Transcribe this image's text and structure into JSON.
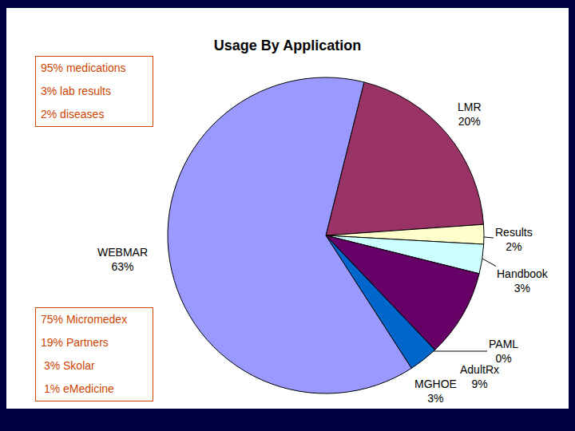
{
  "chart_data": {
    "type": "pie",
    "title": "Usage By Application",
    "categories": [
      "LMR",
      "Results",
      "Handbook",
      "AdultRx",
      "PAML",
      "MGHOE",
      "WEBMAR"
    ],
    "values": [
      20,
      2,
      3,
      9,
      0,
      3,
      63
    ],
    "value_labels": [
      "20%",
      "2%",
      "3%",
      "9%",
      "0%",
      "3%",
      "63%"
    ],
    "colors": [
      "#993366",
      "#FFFFCC",
      "#CCFFFF",
      "#660066",
      "#FF8080",
      "#0066CC",
      "#9999FF"
    ],
    "annotations": [
      [
        "95% medications",
        "3% lab results",
        "2% diseases"
      ],
      [
        "75% Micromedex",
        "19% Partners",
        " 3% Skolar",
        " 1% eMedicine"
      ]
    ]
  }
}
